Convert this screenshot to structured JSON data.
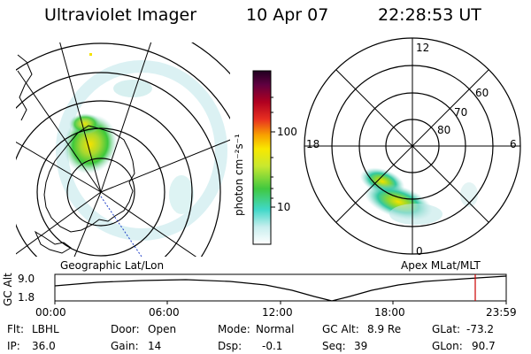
{
  "header": {
    "instrument": "Ultraviolet Imager",
    "date": "10 Apr 07",
    "time": "22:28:53 UT"
  },
  "left_panel": {
    "projection_label": "Geographic Lat/Lon"
  },
  "colorbar": {
    "unit_label": "photon cm⁻²s⁻¹",
    "ticks": [
      "100",
      "10"
    ]
  },
  "right_panel": {
    "projection_label": "Apex MLat/MLT",
    "mlt_labels": {
      "top": "12",
      "bottom": "0",
      "left": "18",
      "right": "6"
    },
    "mlat_labels": [
      "60",
      "70",
      "80"
    ]
  },
  "altitude_plot": {
    "ylabel": "GC Alt",
    "yticks": [
      "9.0",
      "1.8"
    ],
    "xticks": [
      "00:00",
      "06:00",
      "12:00",
      "18:00",
      "23:59"
    ],
    "marker_color": "#cc0000"
  },
  "footer": {
    "row1": [
      {
        "label": "Flt:",
        "value": "LBHL"
      },
      {
        "label": "Door:",
        "value": "Open"
      },
      {
        "label": "Mode:",
        "value": "Normal"
      },
      {
        "label": "GC Alt:",
        "value": "8.9 Re"
      },
      {
        "label": "GLat:",
        "value": "-73.2"
      }
    ],
    "row2": [
      {
        "label": "IP:",
        "value": "36.0"
      },
      {
        "label": "Gain:",
        "value": "14"
      },
      {
        "label": "Dsp:",
        "value": "-0.1"
      },
      {
        "label": "Seq:",
        "value": "39"
      },
      {
        "label": "GLon:",
        "value": "90.7"
      }
    ]
  },
  "colors": {
    "aurora_bright": "#f4e200",
    "aurora_mid": "#3cc83c",
    "aurora_low": "#9ad8d8",
    "trajectory": "#000000"
  }
}
